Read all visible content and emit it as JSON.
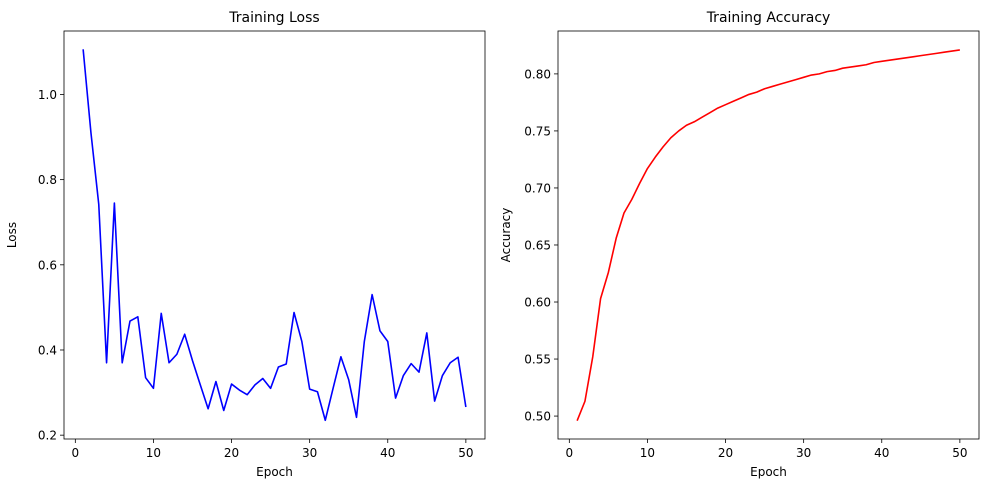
{
  "chart_data": [
    {
      "type": "line",
      "title": "Training Loss",
      "xlabel": "Epoch",
      "ylabel": "Loss",
      "xlim": [
        -1.45,
        52.45
      ],
      "ylim": [
        0.191,
        1.149
      ],
      "xticks": [
        0,
        10,
        20,
        30,
        40,
        50
      ],
      "yticks": [
        0.2,
        0.4,
        0.6,
        0.8,
        1.0
      ],
      "ytick_labels": [
        "0.2",
        "0.4",
        "0.6",
        "0.8",
        "1.0"
      ],
      "grid": false,
      "series": [
        {
          "color": "#0000ff",
          "x": [
            1,
            2,
            3,
            4,
            5,
            6,
            7,
            8,
            9,
            10,
            11,
            12,
            13,
            14,
            15,
            16,
            17,
            18,
            19,
            20,
            21,
            22,
            23,
            24,
            25,
            26,
            27,
            28,
            29,
            30,
            31,
            32,
            33,
            34,
            35,
            36,
            37,
            38,
            39,
            40,
            41,
            42,
            43,
            44,
            45,
            46,
            47,
            48,
            49,
            50
          ],
          "y": [
            1.106,
            0.91,
            0.742,
            0.37,
            0.745,
            0.37,
            0.468,
            0.478,
            0.335,
            0.31,
            0.486,
            0.37,
            0.39,
            0.437,
            0.375,
            0.318,
            0.262,
            0.326,
            0.258,
            0.32,
            0.306,
            0.295,
            0.318,
            0.333,
            0.31,
            0.36,
            0.367,
            0.488,
            0.42,
            0.308,
            0.302,
            0.235,
            0.31,
            0.384,
            0.33,
            0.242,
            0.42,
            0.53,
            0.445,
            0.42,
            0.287,
            0.34,
            0.368,
            0.348,
            0.44,
            0.28,
            0.34,
            0.37,
            0.383,
            0.266
          ]
        }
      ]
    },
    {
      "type": "line",
      "title": "Training Accuracy",
      "xlabel": "Epoch",
      "ylabel": "Accuracy",
      "xlim": [
        -1.45,
        52.45
      ],
      "ylim": [
        0.4799,
        0.8376
      ],
      "xticks": [
        0,
        10,
        20,
        30,
        40,
        50
      ],
      "yticks": [
        0.5,
        0.55,
        0.6,
        0.65,
        0.7,
        0.75,
        0.8
      ],
      "ytick_labels": [
        "0.50",
        "0.55",
        "0.60",
        "0.65",
        "0.70",
        "0.75",
        "0.80"
      ],
      "grid": false,
      "series": [
        {
          "color": "#ff0000",
          "x": [
            1,
            2,
            3,
            4,
            5,
            6,
            7,
            8,
            9,
            10,
            11,
            12,
            13,
            14,
            15,
            16,
            17,
            18,
            19,
            20,
            21,
            22,
            23,
            24,
            25,
            26,
            27,
            28,
            29,
            30,
            31,
            32,
            33,
            34,
            35,
            36,
            37,
            38,
            39,
            40,
            41,
            42,
            43,
            44,
            45,
            46,
            47,
            48,
            49,
            50
          ],
          "y": [
            0.496,
            0.513,
            0.552,
            0.603,
            0.626,
            0.656,
            0.678,
            0.69,
            0.704,
            0.717,
            0.727,
            0.736,
            0.744,
            0.75,
            0.755,
            0.758,
            0.762,
            0.766,
            0.77,
            0.773,
            0.776,
            0.779,
            0.782,
            0.784,
            0.787,
            0.789,
            0.791,
            0.793,
            0.795,
            0.797,
            0.799,
            0.8,
            0.802,
            0.803,
            0.805,
            0.806,
            0.807,
            0.808,
            0.81,
            0.811,
            0.812,
            0.813,
            0.814,
            0.815,
            0.816,
            0.817,
            0.818,
            0.819,
            0.82,
            0.821
          ]
        }
      ]
    }
  ]
}
